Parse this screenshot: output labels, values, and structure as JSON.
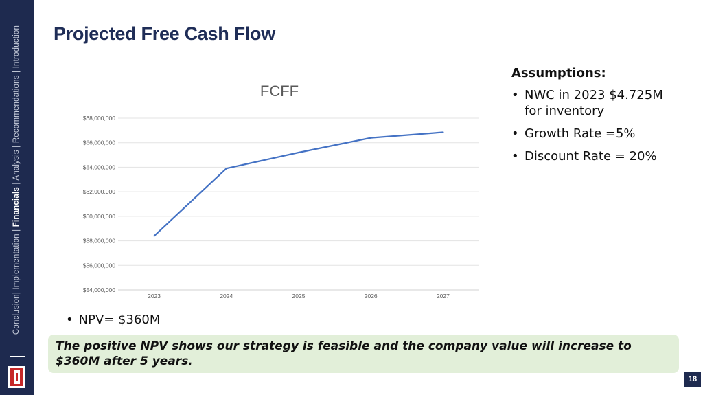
{
  "sidebar": {
    "nav_before": "Conclusion| Implementation | ",
    "nav_active": "Financials",
    "nav_after": " | Analysis | Recommendations | Introduction"
  },
  "slide": {
    "title": "Projected Free Cash Flow",
    "page_number": "18"
  },
  "assumptions": {
    "heading": "Assumptions:",
    "items": [
      "NWC in 2023 $4.725M for inventory",
      "Growth Rate =5%",
      "Discount Rate = 20%"
    ]
  },
  "npv": {
    "bullet": "•",
    "text": "NPV= $360M"
  },
  "callout": {
    "text": "The positive NPV shows our strategy is feasible and the company value will increase to $360M after 5 years."
  },
  "colors": {
    "sidebar": "#1e2a4f",
    "title": "#1f2d57",
    "line": "#4472c4",
    "callout_bg": "#e2efd9"
  },
  "chart_data": {
    "type": "line",
    "title": "FCFF",
    "categories": [
      "2023",
      "2024",
      "2025",
      "2026",
      "2027"
    ],
    "series": [
      {
        "values": [
          58400000,
          63900000,
          65200000,
          66400000,
          66850000
        ]
      }
    ],
    "ylim": [
      54000000,
      68000000
    ],
    "yticks": [
      {
        "value": 54000000,
        "label": "$54,000,000"
      },
      {
        "value": 56000000,
        "label": "$56,000,000"
      },
      {
        "value": 58000000,
        "label": "$58,000,000"
      },
      {
        "value": 60000000,
        "label": "$60,000,000"
      },
      {
        "value": 62000000,
        "label": "$62,000,000"
      },
      {
        "value": 64000000,
        "label": "$64,000,000"
      },
      {
        "value": 66000000,
        "label": "$66,000,000"
      },
      {
        "value": 68000000,
        "label": "$68,000,000"
      }
    ],
    "grid": true,
    "legend": "none"
  }
}
